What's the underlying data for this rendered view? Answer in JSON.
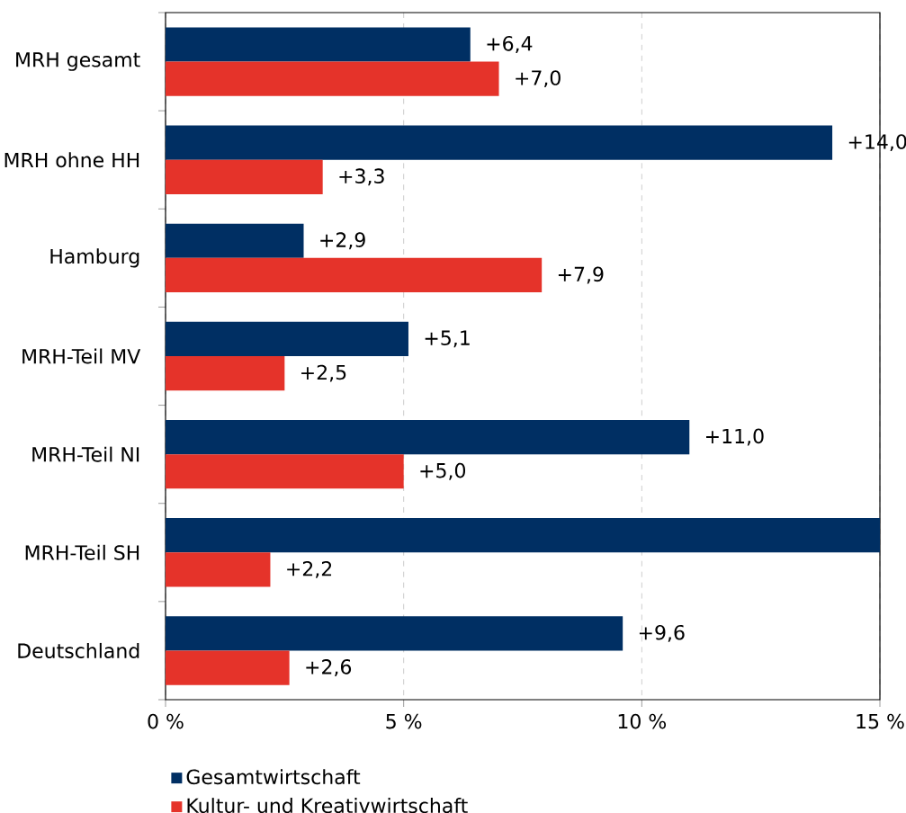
{
  "chart_data": {
    "type": "bar",
    "orientation": "horizontal",
    "categories": [
      "MRH gesamt",
      "MRH ohne HH",
      "Hamburg",
      "MRH-Teil MV",
      "MRH-Teil NI",
      "MRH-Teil SH",
      "Deutschland"
    ],
    "series": [
      {
        "name": "Gesamtwirtschaft",
        "color": "#002f63",
        "values": [
          6.4,
          14.0,
          2.9,
          5.1,
          11.0,
          15,
          9.6
        ],
        "value_labels": [
          "+6,4",
          "+14,0",
          "+2,9",
          "+5,1",
          "+11,0",
          null,
          "+9,6"
        ]
      },
      {
        "name": "Kultur- und Kreativwirtschaft",
        "color": "#e5332a",
        "values": [
          7.0,
          3.3,
          7.9,
          2.5,
          5.0,
          2.2,
          2.6
        ],
        "value_labels": [
          "+7,0",
          "+3,3",
          "+7,9",
          "+2,5",
          "+5,0",
          "+2,2",
          "+2,6"
        ]
      }
    ],
    "xlim": [
      0,
      15
    ],
    "xticks": [
      {
        "value": 0,
        "label": "0 %"
      },
      {
        "value": 5,
        "label": "5 %"
      },
      {
        "value": 10,
        "label": "10 %"
      },
      {
        "value": 15,
        "label": "15 %"
      }
    ],
    "grid": "x",
    "legend": "bottom"
  }
}
